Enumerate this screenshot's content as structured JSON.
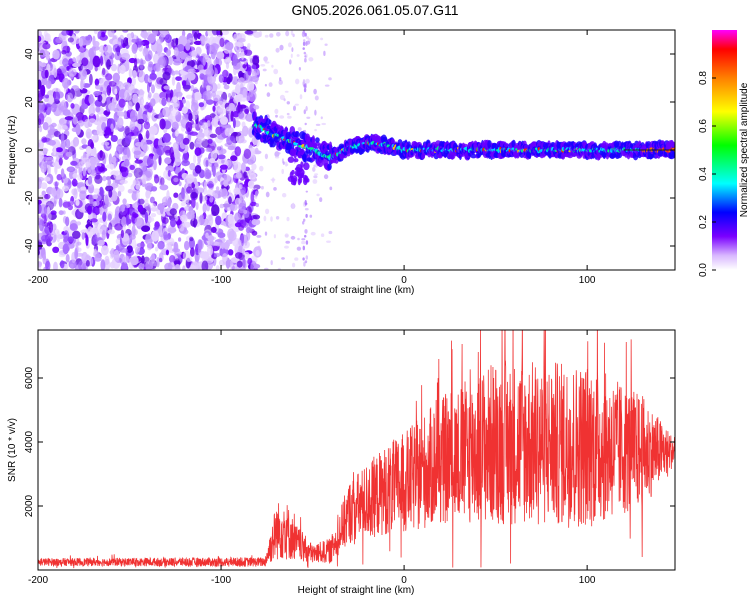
{
  "title": "GN05.2026.061.05.07.G11",
  "chart_data": [
    {
      "type": "heatmap",
      "name": "spectrogram",
      "xlabel": "Height of straight line (km)",
      "ylabel": "Frequency (Hz)",
      "xlim": [
        -200,
        148
      ],
      "ylim": [
        -50,
        50
      ],
      "xticks": [
        -200,
        -100,
        0,
        100
      ],
      "xtick_labels": [
        "-200",
        "-100",
        "0",
        "100"
      ],
      "yticks": [
        -40,
        -20,
        0,
        20,
        40
      ],
      "ytick_labels": [
        "-40",
        "-20",
        "0",
        "20",
        "40"
      ],
      "colorbar": {
        "label": "Normalized spectral amplitude",
        "range": [
          0,
          1
        ],
        "ticks": [
          0.0,
          0.2,
          0.4,
          0.6,
          0.8
        ],
        "tick_labels": [
          "0.0",
          "0.2",
          "0.4",
          "0.6",
          "0.8"
        ]
      },
      "ridge": [
        {
          "x": -80,
          "f": 10
        },
        {
          "x": -70,
          "f": 6
        },
        {
          "x": -60,
          "f": 3
        },
        {
          "x": -50,
          "f": 0
        },
        {
          "x": -40,
          "f": -3
        },
        {
          "x": -30,
          "f": 1
        },
        {
          "x": -20,
          "f": 3
        },
        {
          "x": -10,
          "f": 2
        },
        {
          "x": 0,
          "f": 0
        },
        {
          "x": 20,
          "f": 0
        },
        {
          "x": 50,
          "f": 0
        },
        {
          "x": 100,
          "f": 0
        },
        {
          "x": 148,
          "f": 0
        }
      ]
    },
    {
      "type": "line",
      "name": "snr",
      "xlabel": "Height of straight line (km)",
      "ylabel": "SNR (10 * v/v)",
      "xlim": [
        -200,
        148
      ],
      "ylim": [
        0,
        7500
      ],
      "xticks": [
        -200,
        -100,
        0,
        100
      ],
      "xtick_labels": [
        "-200",
        "-100",
        "0",
        "100"
      ],
      "yticks": [
        2000,
        4000,
        6000
      ],
      "ytick_labels": [
        "2000",
        "4000",
        "6000"
      ],
      "color": "#f03232",
      "envelope": [
        {
          "x": -200,
          "mean": 250,
          "amp": 120
        },
        {
          "x": -76,
          "mean": 250,
          "amp": 150
        },
        {
          "x": -70,
          "mean": 1200,
          "amp": 900
        },
        {
          "x": -65,
          "mean": 1300,
          "amp": 1000
        },
        {
          "x": -60,
          "mean": 900,
          "amp": 600
        },
        {
          "x": -50,
          "mean": 500,
          "amp": 300
        },
        {
          "x": -40,
          "mean": 600,
          "amp": 400
        },
        {
          "x": -30,
          "mean": 1800,
          "amp": 1000
        },
        {
          "x": -10,
          "mean": 2500,
          "amp": 1400
        },
        {
          "x": 0,
          "mean": 2700,
          "amp": 1600
        },
        {
          "x": 20,
          "mean": 3400,
          "amp": 2000
        },
        {
          "x": 50,
          "mean": 4000,
          "amp": 2600
        },
        {
          "x": 100,
          "mean": 3900,
          "amp": 2600
        },
        {
          "x": 130,
          "mean": 3700,
          "amp": 1800
        },
        {
          "x": 148,
          "mean": 3700,
          "amp": 400
        }
      ]
    }
  ]
}
